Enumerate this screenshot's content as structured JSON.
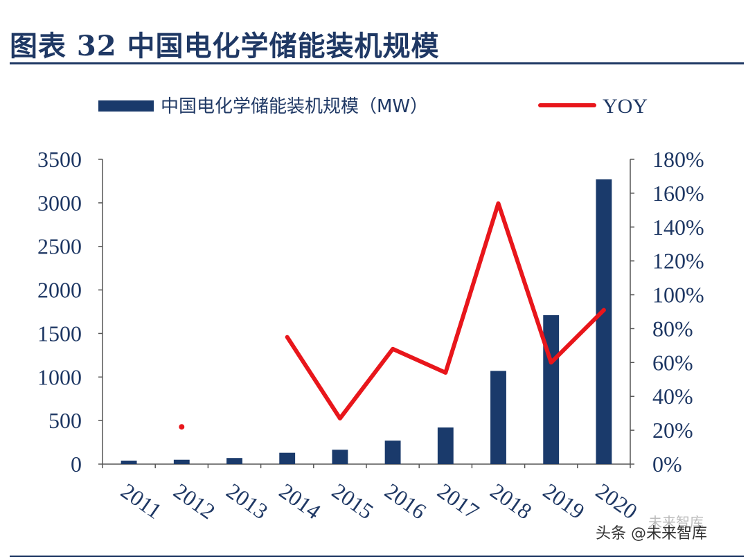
{
  "title": "图表 32 中国电化学储能装机规模",
  "watermark": "头条 @未来智库",
  "watermark_faint": "未来智库",
  "colors": {
    "bar": "#1a3a6b",
    "line": "#e8161b",
    "title": "#1f3864",
    "axis": "#1f3864"
  },
  "chart_data": {
    "type": "bar",
    "categories": [
      "2011",
      "2012",
      "2013",
      "2014",
      "2015",
      "2016",
      "2017",
      "2018",
      "2019",
      "2020"
    ],
    "legend_placement": "top",
    "grid": false,
    "series": [
      {
        "name": "中国电化学储能装机规模（MW）",
        "type": "bar",
        "axis": "left",
        "values": [
          40,
          50,
          70,
          130,
          165,
          270,
          420,
          1070,
          1710,
          3270
        ]
      },
      {
        "name": "YOY",
        "type": "line",
        "axis": "right",
        "values": [
          null,
          22,
          null,
          75,
          27,
          68,
          54,
          154,
          60,
          91
        ]
      }
    ],
    "y_left": {
      "ylim": [
        0,
        3500
      ],
      "ticks": [
        "0",
        "500",
        "1000",
        "1500",
        "2000",
        "2500",
        "3000",
        "3500"
      ]
    },
    "y_right": {
      "ylim": [
        0,
        180
      ],
      "ticks": [
        "0%",
        "20%",
        "40%",
        "60%",
        "80%",
        "100%",
        "120%",
        "140%",
        "160%",
        "180%"
      ]
    }
  }
}
